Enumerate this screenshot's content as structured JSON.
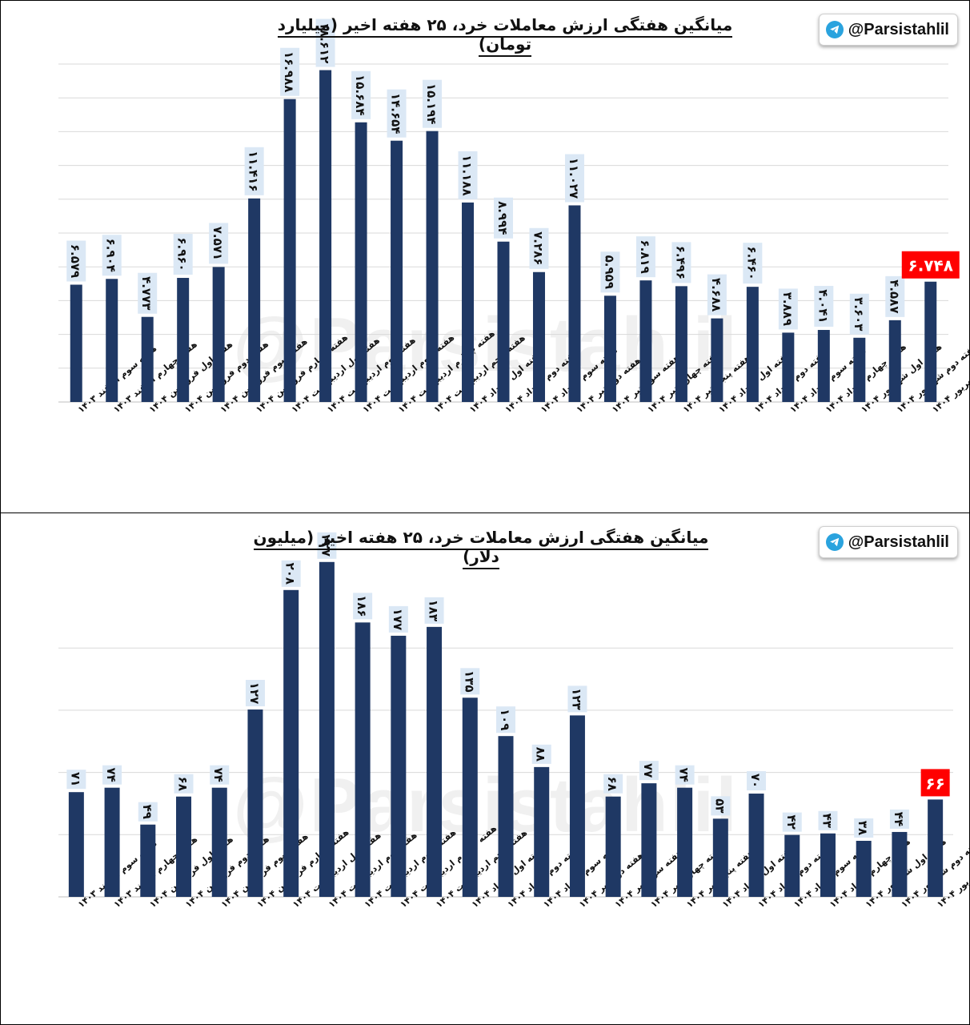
{
  "handle": "@Parsistahlil",
  "highlight_color": "#ff0000",
  "bar_color": "#1f3864",
  "label_bg": "#dbe8f5",
  "chart_data": [
    {
      "type": "bar",
      "title": "میانگین هفتگی ارزش معاملات خرد، ۲۵ هفته اخیر (میلیارد تومان)",
      "ylim": [
        0,
        22.5
      ],
      "grid": true,
      "categories": [
        "هفته سوم اسفند ۱۴۰۳",
        "هفته چهارم اسفند ۱۴۰۳",
        "هفته اول فروردین ۱۴۰۴",
        "هفته دوم فروردین ۱۴۰۴",
        "هفته سوم فروردین ۱۴۰۴",
        "هفته چهارم فروردین ۱۴۰۴",
        "هفته اول اردیبهشت ۱۴۰۴",
        "هفته دوم اردیبهشت ۱۴۰۴",
        "هفته سوم اردیبهشت ۱۴۰۴",
        "هفته چهارم اردیبهشت ۱۴۰۴",
        "هفته پنجم اردیبهشت ۱۴۰۴",
        "هفته اول خرداد ۱۴۰۴",
        "هفته دوم خرداد ۱۴۰۴",
        "هفته سوم خرداد ۱۴۰۴",
        "هفته دوم تیر ۱۴۰۴",
        "هفته سوم تیر ۱۴۰۴",
        "هفته چهارم تیر ۱۴۰۴",
        "هفته پنجم تیر ۱۴۰۴",
        "هفته اول مرداد ۱۴۰۴",
        "هفته دوم مرداد ۱۴۰۴",
        "هفته سوم مرداد ۱۴۰۴",
        "هفته چهارم مرداد ۱۴۰۴",
        "هفته اول شهریور ۱۴۰۴",
        "هفته دوم شهریور ۱۴۰۴",
        "هفته سوم شهریور ۱۴۰۴"
      ],
      "values": [
        6.579,
        6.904,
        4.773,
        6.96,
        7.571,
        11.416,
        16.988,
        18.612,
        15.684,
        14.654,
        15.194,
        11.188,
        8.994,
        7.286,
        11.027,
        5.959,
        6.819,
        6.496,
        4.688,
        6.46,
        3.889,
        4.041,
        3.603,
        4.587,
        6.748
      ],
      "data_labels": [
        "۶.۵۷۹",
        "۶.۹۰۴",
        "۴.۷۷۳",
        "۶.۹۶۰",
        "۷.۵۷۱",
        "۱۱.۴۱۶",
        "۱۶.۹۸۸",
        "۱۸.۶۱۲",
        "۱۵.۶۸۴",
        "۱۴.۶۵۴",
        "۱۵.۱۹۴",
        "۱۱.۱۸۸",
        "۸.۹۹۴",
        "۷.۲۸۶",
        "۱۱.۰۲۷",
        "۵.۹۵۹",
        "۶.۸۱۹",
        "۶.۴۹۶",
        "۴.۶۸۸",
        "۶.۴۶۰",
        "۳.۸۸۹",
        "۴.۰۴۱",
        "۳.۶۰۳",
        "۴.۵۸۷",
        "۶.۷۴۸"
      ],
      "highlight_index": 24
    },
    {
      "type": "bar",
      "title": "میانگین هفتگی ارزش معاملات خرد، ۲۵ هفته اخیر (میلیون دلار)",
      "ylim": [
        0,
        260
      ],
      "grid": true,
      "categories": [
        "هفته سوم اسفند ۱۴۰۳",
        "هفته چهارم اسفند ۱۴۰۳",
        "هفته اول فروردین ۱۴۰۴",
        "هفته دوم فروردین ۱۴۰۴",
        "هفته سوم فروردین ۱۴۰۴",
        "هفته چهارم فروردین ۱۴۰۴",
        "هفته اول اردیبهشت ۱۴۰۴",
        "هفته دوم اردیبهشت ۱۴۰۴",
        "هفته سوم اردیبهشت ۱۴۰۴",
        "هفته چهارم اردیبهشت ۱۴۰۴",
        "هفته پنجم اردیبهشت ۱۴۰۴",
        "هفته اول خرداد ۱۴۰۴",
        "هفته دوم خرداد ۱۴۰۴",
        "هفته سوم خرداد ۱۴۰۴",
        "هفته دوم تیر ۱۴۰۴",
        "هفته سوم تیر ۱۴۰۴",
        "هفته چهارم تیر ۱۴۰۴",
        "هفته پنجم تیر ۱۴۰۴",
        "هفته اول مرداد ۱۴۰۴",
        "هفته دوم مرداد ۱۴۰۴",
        "هفته سوم مرداد ۱۴۰۴",
        "هفته چهارم مرداد ۱۴۰۴",
        "هفته اول شهریور ۱۴۰۴",
        "هفته دوم شهریور ۱۴۰۴",
        "هفته سوم شهریور ۱۴۰۴"
      ],
      "values": [
        71,
        74,
        49,
        68,
        74,
        127,
        208,
        227,
        186,
        177,
        183,
        135,
        109,
        88,
        123,
        68,
        77,
        74,
        53,
        70,
        42,
        43,
        38,
        44,
        66
      ],
      "data_labels": [
        "۷۱",
        "۷۴",
        "۴۹",
        "۶۸",
        "۷۴",
        "۱۲۷",
        "۲۰۸",
        "۲۲۷",
        "۱۸۶",
        "۱۷۷",
        "۱۸۳",
        "۱۳۵",
        "۱۰۹",
        "۸۸",
        "۱۲۳",
        "۶۸",
        "۷۷",
        "۷۴",
        "۵۳",
        "۷۰",
        "۴۲",
        "۴۳",
        "۳۸",
        "۴۴",
        "۶۶"
      ],
      "highlight_index": 24
    }
  ]
}
